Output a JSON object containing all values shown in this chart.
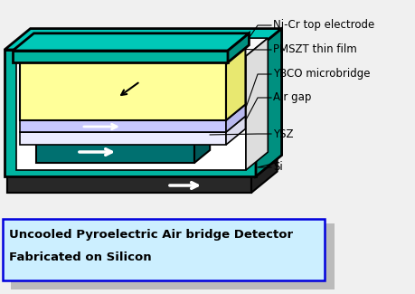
{
  "caption_line1": "Uncooled Pyroelectric Air bridge Detector",
  "caption_line2": "Fabricated on Silicon",
  "labels": {
    "ni_cr": "Ni-Cr top electrode",
    "pmszt": "PMSZT thin film",
    "ybco": "YBCO microbridge",
    "air_gap": "Air gap",
    "ysz": "YSZ",
    "si": "Si"
  },
  "colors": {
    "teal": "#00B4A0",
    "teal_top": "#00C8B8",
    "teal_side": "#009080",
    "black": "#000000",
    "white": "#FFFFFF",
    "yellow": "#FFFF99",
    "lavender": "#C8C8FF",
    "dark_teal": "#007070",
    "dark_teal_side": "#005858",
    "si_dark": "#282828",
    "si_side": "#383838",
    "background": "#F0F0F0",
    "caption_bg": "#CCEFFF",
    "caption_border": "#0000DD",
    "shadow": "#AAAAAA",
    "inner_white": "#FFFFFF",
    "inner_side": "#DDDDDD"
  },
  "font_size_labels": 8.5,
  "font_size_caption": 9.5
}
